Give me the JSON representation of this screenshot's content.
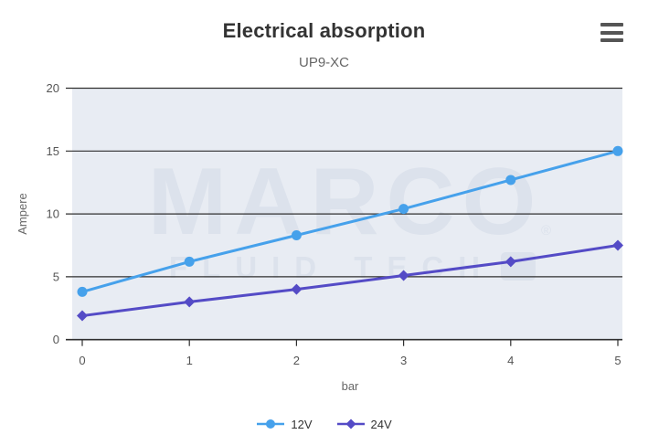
{
  "header": {
    "menu_icon": "hamburger-icon",
    "menu_color": "#555555"
  },
  "chart_data": {
    "type": "line",
    "title": "Electrical absorption",
    "subtitle": "UP9-XC",
    "xlabel": "bar",
    "ylabel": "Ampere",
    "x": [
      0,
      1,
      2,
      3,
      4,
      5
    ],
    "series": [
      {
        "name": "12V",
        "color": "#46A1EB",
        "marker": "circle",
        "values": [
          3.8,
          6.2,
          8.3,
          10.4,
          12.7,
          15.0
        ]
      },
      {
        "name": "24V",
        "color": "#544BC6",
        "marker": "diamond",
        "values": [
          1.9,
          3.0,
          4.0,
          5.1,
          6.2,
          7.5
        ]
      }
    ],
    "xlim": [
      0,
      5
    ],
    "ylim": [
      0,
      20
    ],
    "x_ticks": [
      0,
      1,
      2,
      3,
      4,
      5
    ],
    "y_ticks": [
      0,
      5,
      10,
      15,
      20
    ],
    "grid": "horizontal-only",
    "grid_color": "#2F2F2F",
    "plot_bg": "#E8ECF3",
    "tick_label_color": "#555555",
    "axis_title_color": "#666666",
    "legend_position": "bottom",
    "watermark": {
      "line1": "MARCO",
      "line2": "FLUID TECH",
      "registered": "®",
      "color": "#DCE2EC"
    }
  }
}
